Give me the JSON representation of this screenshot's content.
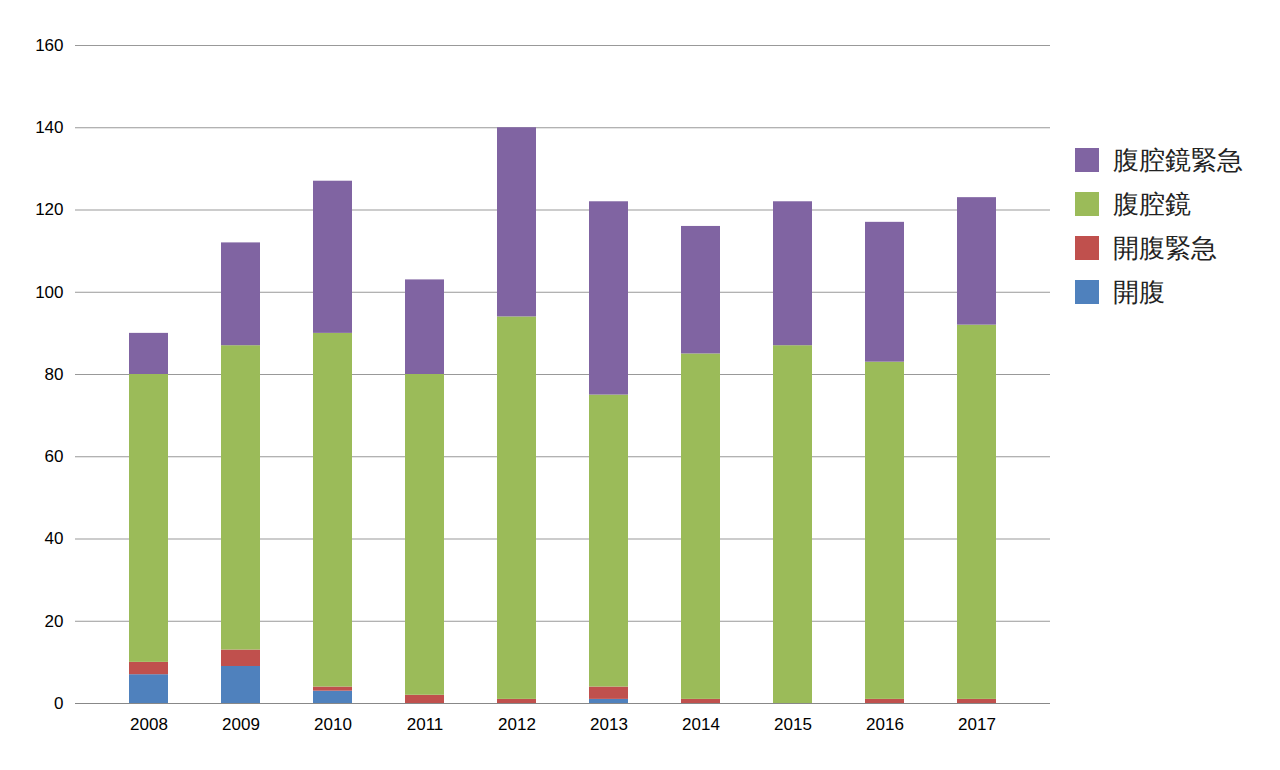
{
  "chart_data": {
    "type": "bar",
    "stacked": true,
    "categories": [
      "2008",
      "2009",
      "2010",
      "2011",
      "2012",
      "2013",
      "2014",
      "2015",
      "2016",
      "2017"
    ],
    "series": [
      {
        "name": "開腹",
        "color": "#4f81bd",
        "values": [
          7,
          9,
          3,
          0,
          0,
          1,
          0,
          0,
          0,
          0
        ]
      },
      {
        "name": "開腹緊急",
        "color": "#c0504d",
        "values": [
          3,
          4,
          1,
          2,
          1,
          3,
          1,
          0,
          1,
          1
        ]
      },
      {
        "name": "腹腔鏡",
        "color": "#9bbb59",
        "values": [
          70,
          74,
          86,
          78,
          93,
          71,
          84,
          87,
          82,
          91
        ]
      },
      {
        "name": "腹腔鏡緊急",
        "color": "#8064a2",
        "values": [
          10,
          25,
          37,
          23,
          46,
          47,
          31,
          35,
          34,
          31
        ]
      }
    ],
    "ylim": [
      0,
      160
    ],
    "yticks": [
      0,
      20,
      40,
      60,
      80,
      100,
      120,
      140,
      160
    ],
    "grid": true,
    "legend": "right"
  }
}
